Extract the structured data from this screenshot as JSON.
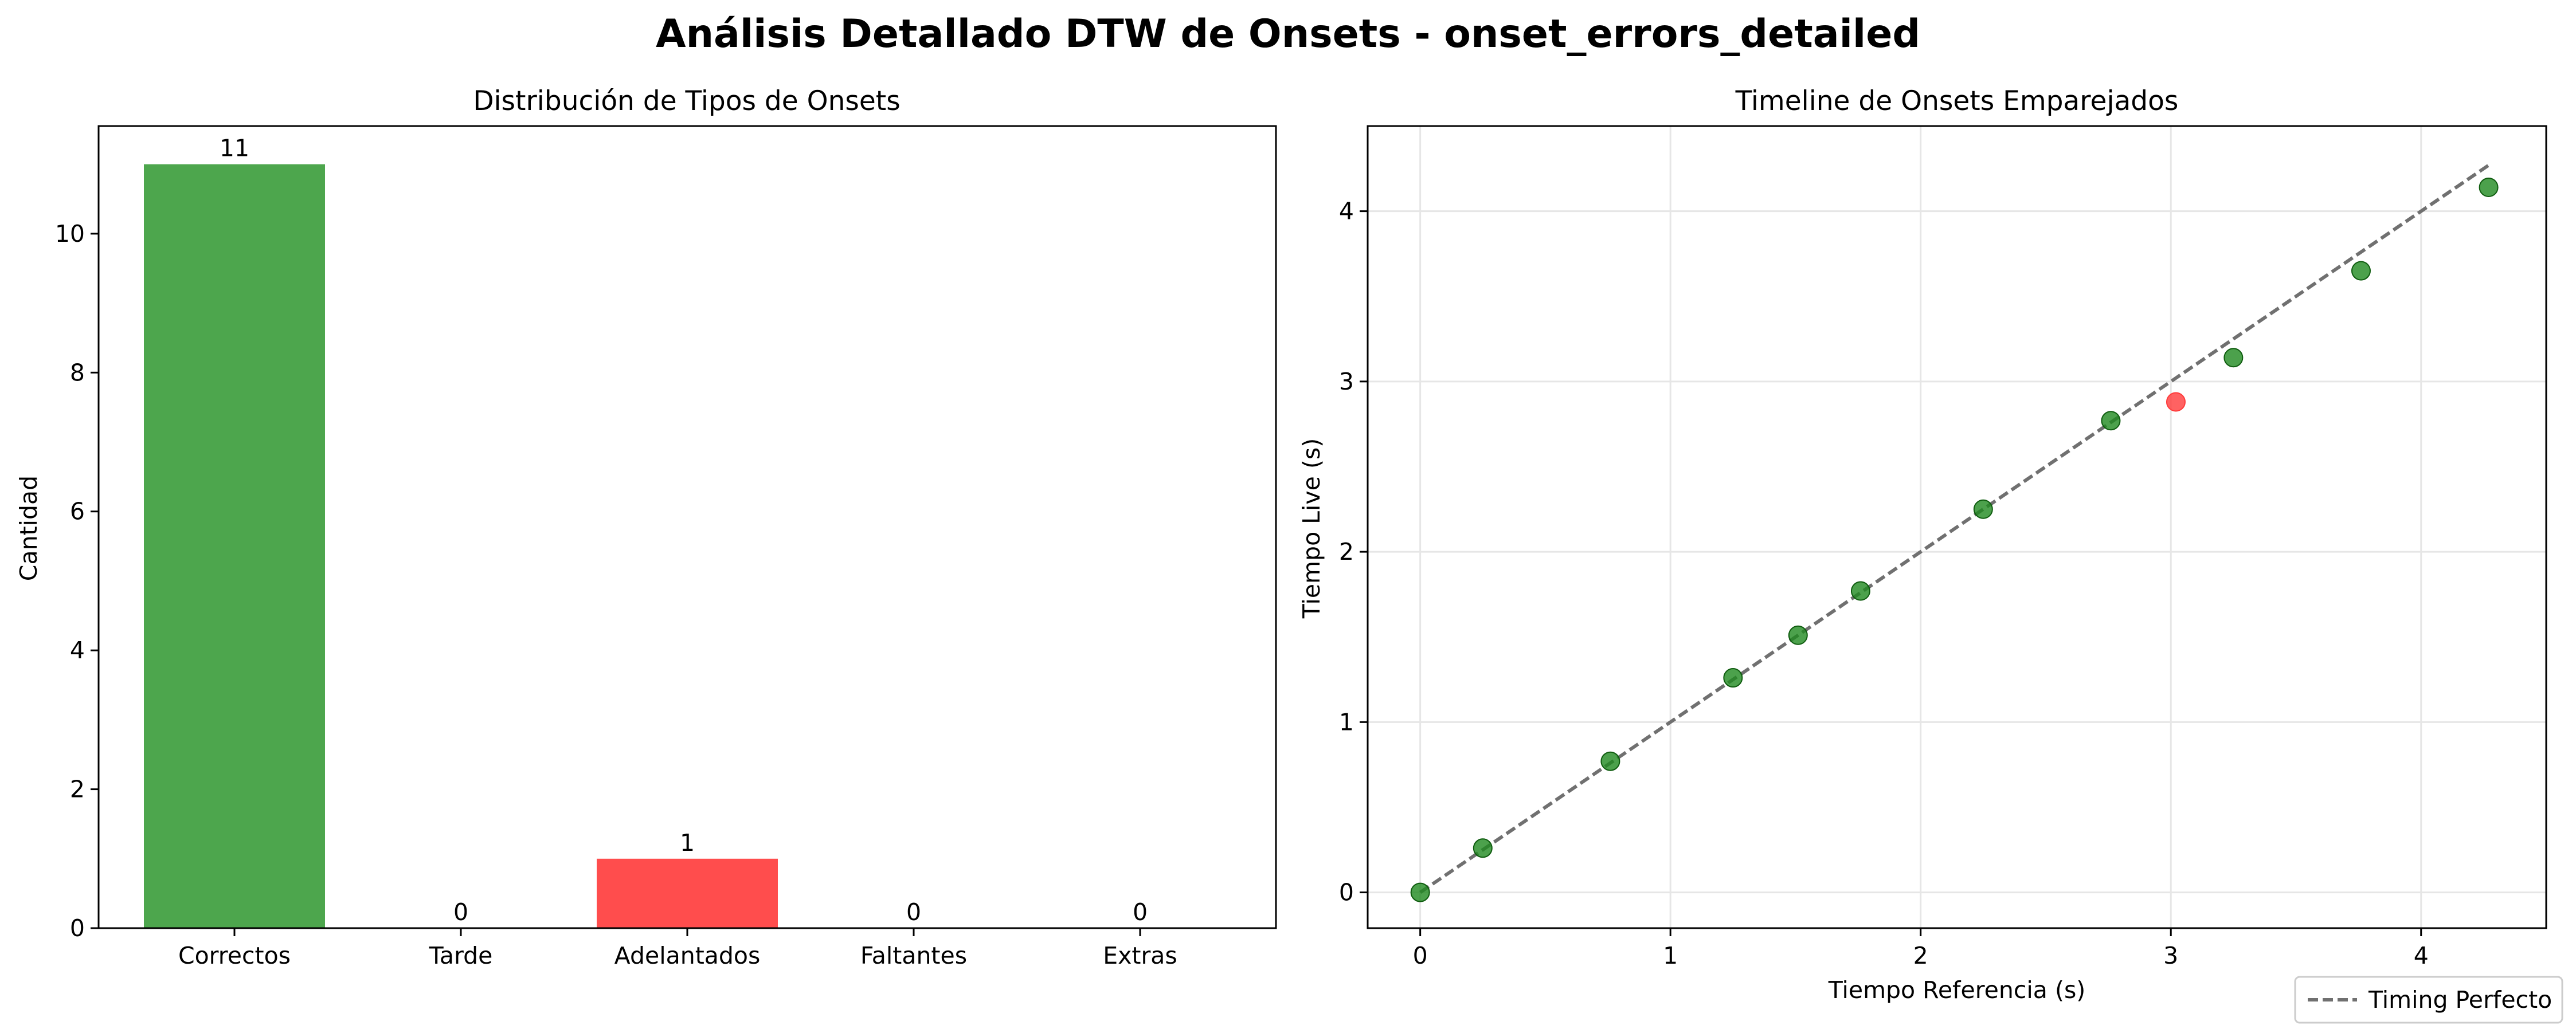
{
  "figure_title": "Análisis Detallado DTW de Onsets - onset_errors_detailed",
  "chart_data": [
    {
      "type": "bar",
      "title": "Distribución de Tipos de Onsets",
      "xlabel": "",
      "ylabel": "Cantidad",
      "categories": [
        "Correctos",
        "Tarde",
        "Adelantados",
        "Faltantes",
        "Extras"
      ],
      "values": [
        11,
        0,
        1,
        0,
        0
      ],
      "value_labels": [
        "11",
        "0",
        "1",
        "0",
        "0"
      ],
      "colors": [
        "#4da64d",
        "#ffa500",
        "#ff4d4d",
        "#808080",
        "#800080"
      ],
      "ylim": [
        0,
        11.55
      ],
      "yticks": [
        0,
        2,
        4,
        6,
        8,
        10
      ],
      "grid": false
    },
    {
      "type": "scatter",
      "title": "Timeline de Onsets Emparejados",
      "xlabel": "Tiempo Referencia (s)",
      "ylabel": "Tiempo Live (s)",
      "xlim": [
        -0.21,
        4.5
      ],
      "ylim": [
        -0.21,
        4.5
      ],
      "xticks": [
        0,
        1,
        2,
        3,
        4
      ],
      "yticks": [
        0,
        1,
        2,
        3,
        4
      ],
      "grid": true,
      "points": [
        {
          "x": 0.0,
          "y": 0.0,
          "status": "correct"
        },
        {
          "x": 0.25,
          "y": 0.26,
          "status": "correct"
        },
        {
          "x": 0.76,
          "y": 0.77,
          "status": "correct"
        },
        {
          "x": 1.25,
          "y": 1.26,
          "status": "correct"
        },
        {
          "x": 1.51,
          "y": 1.51,
          "status": "correct"
        },
        {
          "x": 1.76,
          "y": 1.77,
          "status": "correct"
        },
        {
          "x": 2.25,
          "y": 2.25,
          "status": "correct"
        },
        {
          "x": 2.76,
          "y": 2.77,
          "status": "correct"
        },
        {
          "x": 3.02,
          "y": 2.88,
          "status": "early"
        },
        {
          "x": 3.25,
          "y": 3.14,
          "status": "correct"
        },
        {
          "x": 3.76,
          "y": 3.65,
          "status": "correct"
        },
        {
          "x": 4.27,
          "y": 4.14,
          "status": "correct"
        }
      ],
      "point_colors": {
        "correct": "#1f8a1f",
        "early": "#ff3b3b"
      },
      "reference_line": {
        "name": "Timing Perfecto",
        "from": [
          0,
          0
        ],
        "to": [
          4.27,
          4.27
        ],
        "color": "#707070"
      },
      "legend": {
        "entries": [
          "Timing Perfecto"
        ],
        "placement": "bottom-right"
      }
    }
  ]
}
